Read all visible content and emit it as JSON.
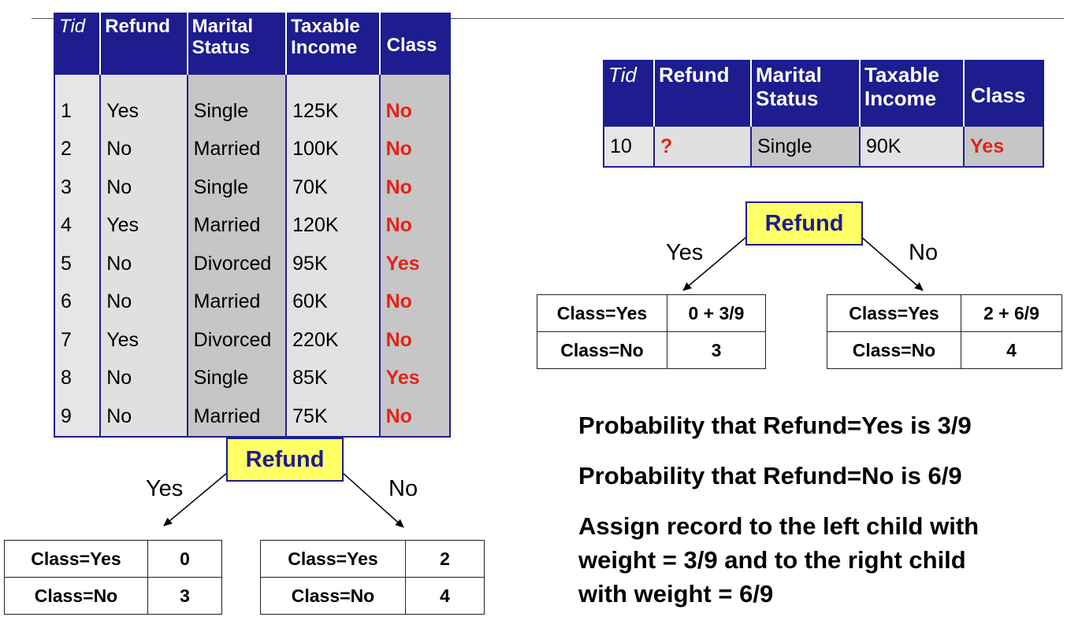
{
  "main_table": {
    "headers": [
      "Tid",
      "Refund",
      "Marital Status",
      "Taxable Income",
      "Class"
    ],
    "rows": [
      [
        "1",
        "Yes",
        "Single",
        "125K",
        "No"
      ],
      [
        "2",
        "No",
        "Married",
        "100K",
        "No"
      ],
      [
        "3",
        "No",
        "Single",
        "70K",
        "No"
      ],
      [
        "4",
        "Yes",
        "Married",
        "120K",
        "No"
      ],
      [
        "5",
        "No",
        "Divorced",
        "95K",
        "Yes"
      ],
      [
        "6",
        "No",
        "Married",
        "60K",
        "No"
      ],
      [
        "7",
        "Yes",
        "Divorced",
        "220K",
        "No"
      ],
      [
        "8",
        "No",
        "Single",
        "85K",
        "Yes"
      ],
      [
        "9",
        "No",
        "Married",
        "75K",
        "No"
      ]
    ]
  },
  "test_table": {
    "headers": [
      "Tid",
      "Refund",
      "Marital Status",
      "Taxable Income",
      "Class"
    ],
    "row": [
      "10",
      "?",
      "Single",
      "90K",
      "Yes"
    ]
  },
  "tree_left": {
    "node": "Refund",
    "yes_label": "Yes",
    "no_label": "No",
    "yes_counts": [
      [
        "Class=Yes",
        "0"
      ],
      [
        "Class=No",
        "3"
      ]
    ],
    "no_counts": [
      [
        "Class=Yes",
        "2"
      ],
      [
        "Class=No",
        "4"
      ]
    ]
  },
  "tree_right": {
    "node": "Refund",
    "yes_label": "Yes",
    "no_label": "No",
    "yes_counts": [
      [
        "Class=Yes",
        "0 + 3/9"
      ],
      [
        "Class=No",
        "3"
      ]
    ],
    "no_counts": [
      [
        "Class=Yes",
        "2 + 6/9"
      ],
      [
        "Class=No",
        "4"
      ]
    ]
  },
  "probability_text": {
    "line1": "Probability that Refund=Yes is 3/9",
    "line2": "Probability that Refund=No is 6/9",
    "line3": [
      "Assign record to the left child with",
      "weight = 3/9 and to the right child",
      "with weight = 6/9"
    ]
  },
  "colors": {
    "header_blue": "#1d1d8f",
    "class_red": "#e3231a",
    "node_yellow": "#ffff66"
  }
}
